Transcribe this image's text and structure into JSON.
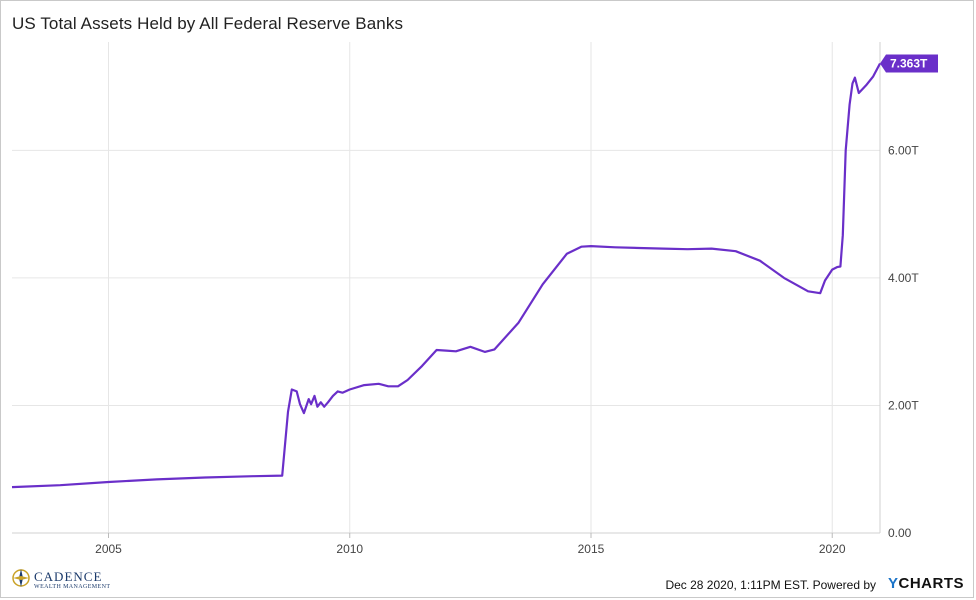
{
  "title": "US Total Assets Held by All Federal Reserve Banks",
  "footer": {
    "timestamp": "Dec 28 2020, 1:11PM EST. Powered by",
    "brand_y": "Y",
    "brand_rest": "CHARTS"
  },
  "logo": {
    "name": "CADENCE",
    "tagline": "WEALTH MANAGEMENT"
  },
  "colors": {
    "series": "#6a2fc9",
    "grid": "#e6e6e6",
    "badge": "#6a2fc9"
  },
  "chart_data": {
    "type": "line",
    "title": "US Total Assets Held by All Federal Reserve Banks",
    "xlabel": "",
    "ylabel": "",
    "x_ticks": [
      "2005",
      "2010",
      "2015",
      "2020"
    ],
    "y_ticks": [
      "0.00",
      "2.00T",
      "4.00T",
      "6.00T"
    ],
    "xlim": [
      2003.0,
      2020.99
    ],
    "ylim": [
      0,
      7.7
    ],
    "grid": true,
    "last_value_label": "7.363T",
    "series": [
      {
        "x": [
          2003.0,
          2004.0,
          2005.0,
          2006.0,
          2007.0,
          2008.0,
          2008.6,
          2008.72,
          2008.8,
          2008.9,
          2008.97,
          2009.05,
          2009.15,
          2009.2,
          2009.27,
          2009.33,
          2009.4,
          2009.47,
          2009.55,
          2009.65,
          2009.75,
          2009.85,
          2010.0,
          2010.3,
          2010.6,
          2010.8,
          2011.0,
          2011.2,
          2011.5,
          2011.8,
          2012.0,
          2012.2,
          2012.5,
          2012.8,
          2013.0,
          2013.5,
          2014.0,
          2014.5,
          2014.8,
          2015.0,
          2015.5,
          2016.0,
          2016.5,
          2017.0,
          2017.5,
          2018.0,
          2018.5,
          2019.0,
          2019.5,
          2019.75,
          2019.85,
          2020.0,
          2020.1,
          2020.17,
          2020.22,
          2020.28,
          2020.36,
          2020.42,
          2020.47,
          2020.55,
          2020.7,
          2020.85,
          2020.99
        ],
        "values": [
          0.72,
          0.75,
          0.8,
          0.84,
          0.87,
          0.89,
          0.9,
          1.9,
          2.25,
          2.22,
          2.02,
          1.88,
          2.1,
          2.02,
          2.15,
          1.98,
          2.05,
          1.98,
          2.05,
          2.15,
          2.22,
          2.2,
          2.25,
          2.32,
          2.34,
          2.3,
          2.3,
          2.4,
          2.62,
          2.87,
          2.86,
          2.85,
          2.92,
          2.84,
          2.88,
          3.3,
          3.9,
          4.38,
          4.49,
          4.5,
          4.48,
          4.47,
          4.46,
          4.45,
          4.46,
          4.42,
          4.27,
          4.0,
          3.79,
          3.76,
          3.96,
          4.13,
          4.17,
          4.18,
          4.67,
          6.0,
          6.72,
          7.05,
          7.14,
          6.9,
          7.02,
          7.16,
          7.363
        ]
      }
    ]
  }
}
